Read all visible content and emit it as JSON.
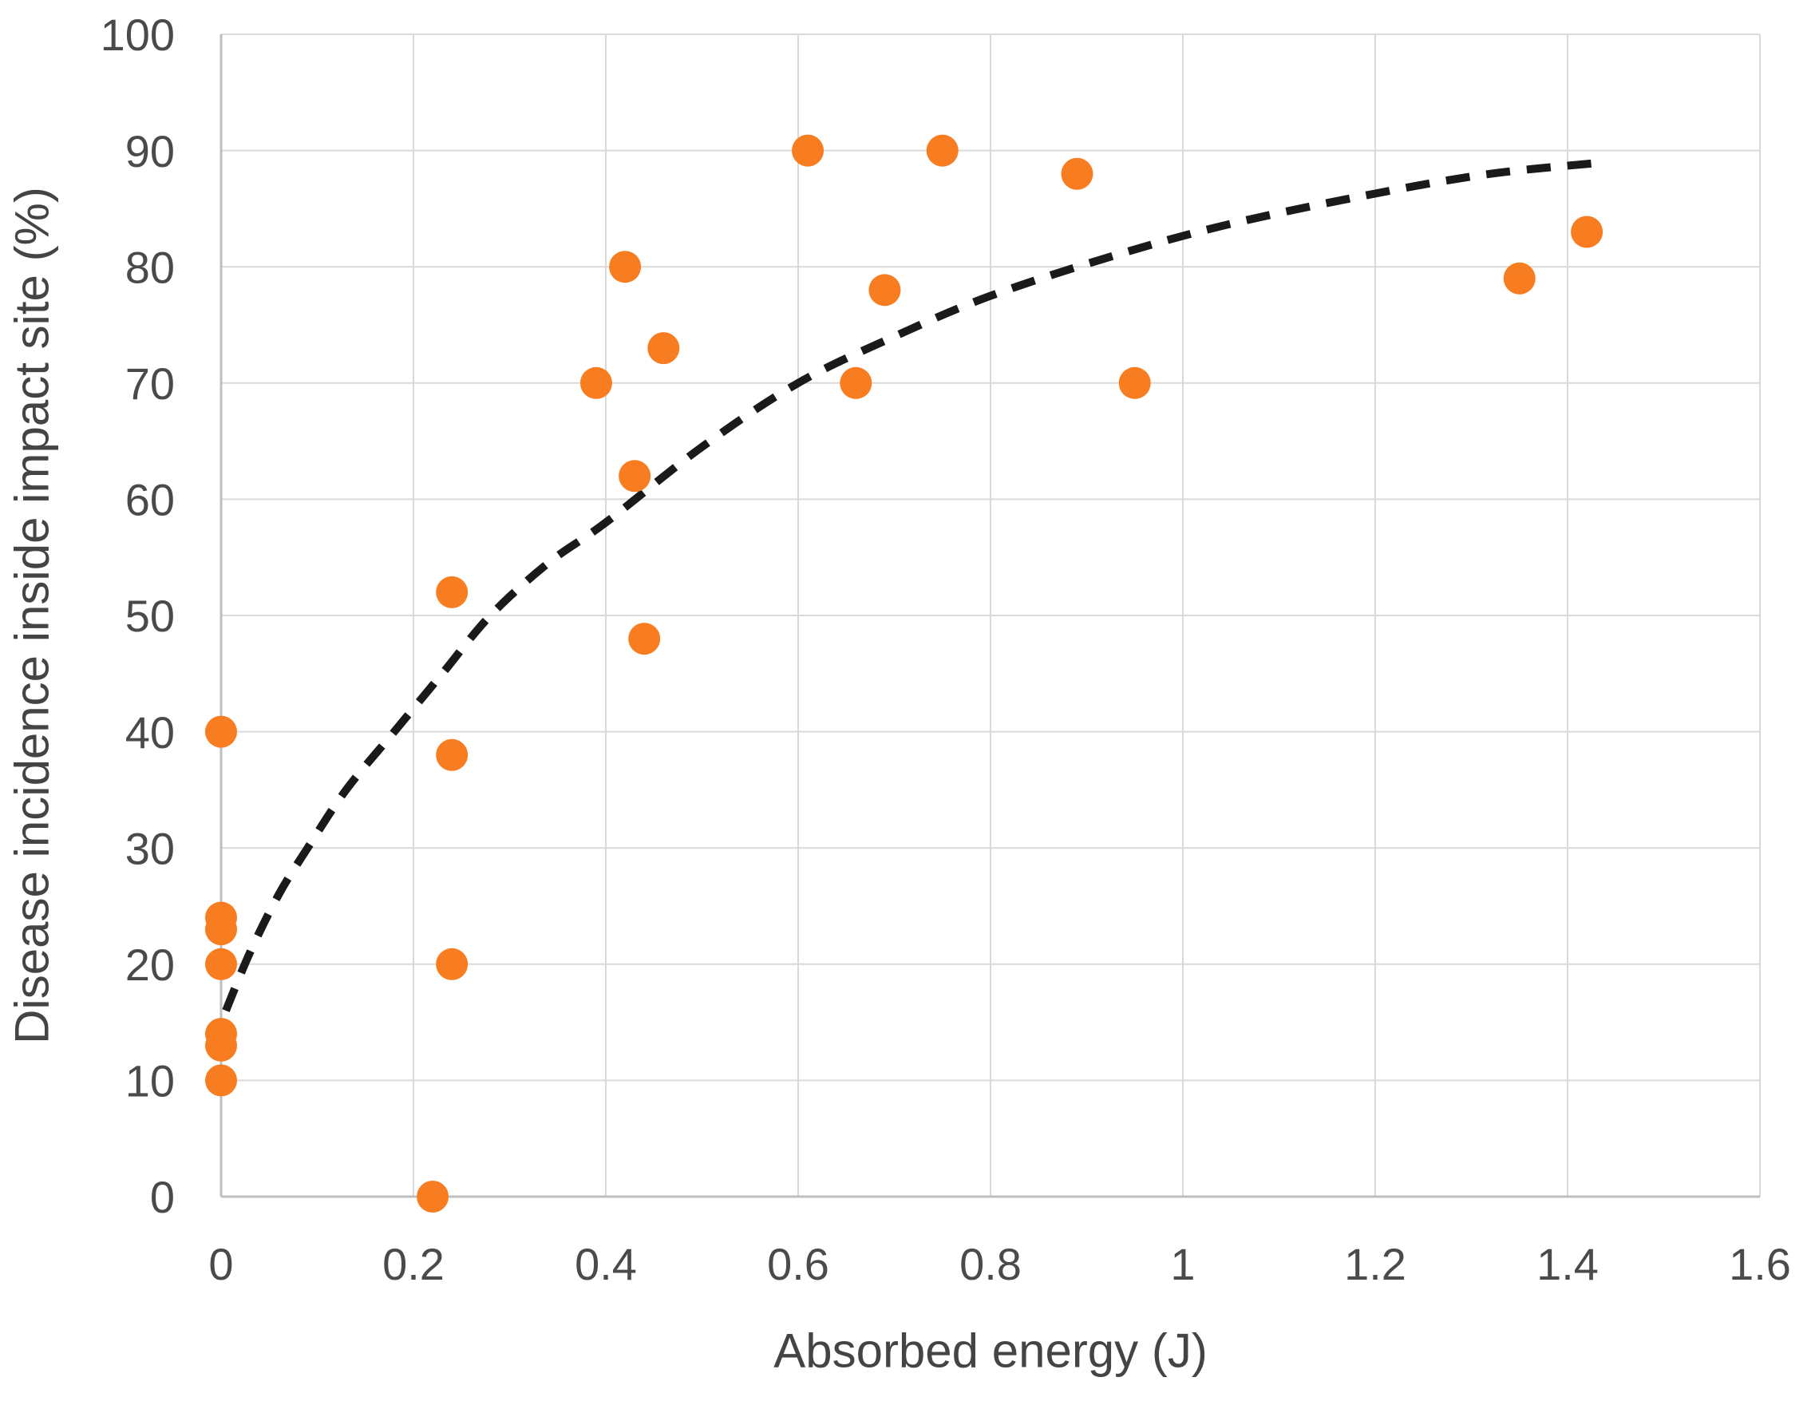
{
  "chart_data": {
    "type": "scatter",
    "title": "",
    "xlabel": "Absorbed energy (J)",
    "ylabel": "Disease incidence inside impact site (%)",
    "xlim": [
      0,
      1.6
    ],
    "ylim": [
      0,
      100
    ],
    "grid": true,
    "legend": false,
    "x_ticks": {
      "values": [
        0,
        0.2,
        0.4,
        0.6,
        0.8,
        1,
        1.2,
        1.4,
        1.6
      ],
      "labels": [
        "0",
        "0.2",
        "0.4",
        "0.6",
        "0.8",
        "1",
        "1.2",
        "1.4",
        "1.6"
      ]
    },
    "y_ticks": {
      "values": [
        0,
        10,
        20,
        30,
        40,
        50,
        60,
        70,
        80,
        90,
        100
      ],
      "labels": [
        "0",
        "10",
        "20",
        "30",
        "40",
        "50",
        "60",
        "70",
        "80",
        "90",
        "100"
      ]
    },
    "series": [
      {
        "marker": "circle",
        "marker_color": "#F87C20",
        "points": [
          {
            "x": 0,
            "y": 40
          },
          {
            "x": 0,
            "y": 24
          },
          {
            "x": 0,
            "y": 23
          },
          {
            "x": 0,
            "y": 20
          },
          {
            "x": 0,
            "y": 14
          },
          {
            "x": 0,
            "y": 13
          },
          {
            "x": 0,
            "y": 10
          },
          {
            "x": 0.22,
            "y": 0
          },
          {
            "x": 0.24,
            "y": 52
          },
          {
            "x": 0.24,
            "y": 38
          },
          {
            "x": 0.24,
            "y": 20
          },
          {
            "x": 0.39,
            "y": 70
          },
          {
            "x": 0.42,
            "y": 80
          },
          {
            "x": 0.43,
            "y": 62
          },
          {
            "x": 0.44,
            "y": 48
          },
          {
            "x": 0.46,
            "y": 73
          },
          {
            "x": 0.61,
            "y": 90
          },
          {
            "x": 0.66,
            "y": 70
          },
          {
            "x": 0.69,
            "y": 78
          },
          {
            "x": 0.75,
            "y": 90
          },
          {
            "x": 0.89,
            "y": 88
          },
          {
            "x": 0.95,
            "y": 70
          },
          {
            "x": 1.35,
            "y": 79
          },
          {
            "x": 1.42,
            "y": 83
          }
        ]
      }
    ],
    "trendline": {
      "style": "dashed",
      "color": "#1A1A1A",
      "points": [
        [
          0.005,
          16
        ],
        [
          0.03,
          21
        ],
        [
          0.06,
          26
        ],
        [
          0.09,
          30
        ],
        [
          0.13,
          35
        ],
        [
          0.18,
          40
        ],
        [
          0.23,
          45
        ],
        [
          0.28,
          50
        ],
        [
          0.34,
          54.5
        ],
        [
          0.4,
          58
        ],
        [
          0.5,
          64.5
        ],
        [
          0.6,
          70
        ],
        [
          0.7,
          74
        ],
        [
          0.8,
          77.5
        ],
        [
          0.93,
          81
        ],
        [
          1.05,
          83.7
        ],
        [
          1.2,
          86.3
        ],
        [
          1.32,
          88
        ],
        [
          1.44,
          89
        ]
      ]
    },
    "colors": {
      "background": "#FFFFFF",
      "gridline": "#D9D9D9",
      "axis_line": "#BFBFBF",
      "tick_label": "#4A4A4A",
      "axis_title": "#444444",
      "marker": "#F87C20",
      "trendline": "#1A1A1A"
    }
  }
}
